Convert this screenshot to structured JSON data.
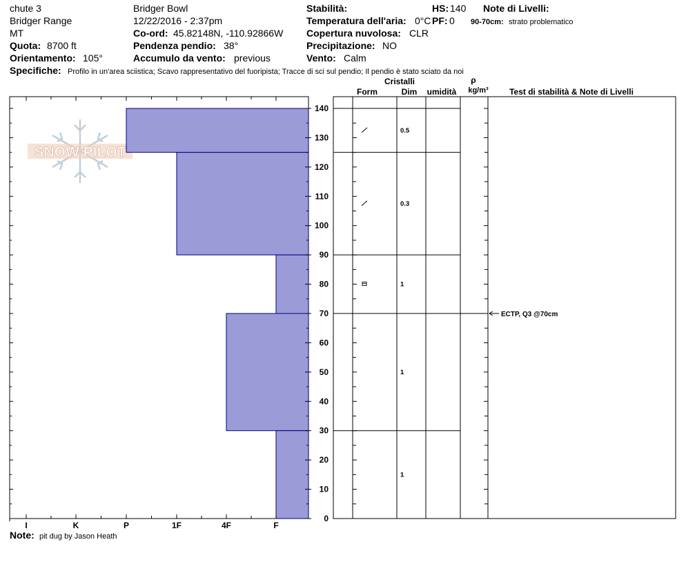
{
  "header": {
    "location_name": "chute 3",
    "range": "Bridger Range",
    "state": "MT",
    "elevation_label": "Quota:",
    "elevation_value": "8700 ft",
    "aspect_label": "Orientamento:",
    "aspect_value": "105°",
    "area": "Bridger Bowl",
    "datetime": "12/22/2016 - 2:37pm",
    "coord_label": "Co-ord:",
    "coord_value": "45.82148N, -110.92866W",
    "slope_label": "Pendenza pendio:",
    "slope_value": "38°",
    "wind_load_label": "Accumulo da vento:",
    "wind_load_value": "previous",
    "stability_label": "Stabilità:",
    "stability_value": "",
    "air_temp_label": "Temperatura dell'aria:",
    "air_temp_value": "0°C",
    "sky_label": "Copertura nuvolosa:",
    "sky_value": "CLR",
    "precip_label": "Precipitazione:",
    "precip_value": "NO",
    "wind_label": "Vento:",
    "wind_value": "Calm",
    "hs_label": "HS:",
    "hs_value": "140",
    "pf_label": "PF:",
    "pf_value": "0",
    "layer_notes_label": "Note di Livelli:",
    "layer_note_range": "90-70cm:",
    "layer_note_text": "strato problematico",
    "specifics_label": "Specifiche:",
    "specifics_text": "Profilo in un'area sciistica; Scavo rappresentativo del fuoripista; Tracce di sci sul pendio; Il pendio è stato sciato da noi"
  },
  "footer": {
    "note_label": "Note:",
    "note_text": "pit dug by Jason Heath"
  },
  "logo": {
    "text": "SNOW PILOT"
  },
  "columns": {
    "crystals": "Cristalli",
    "form": "Form",
    "dim": "Dim",
    "moisture": "umidità",
    "density_symbol": "ρ",
    "density_unit": "kg/m³",
    "tests": "Test di stabilità & Note di Livelli"
  },
  "chart_data": {
    "type": "bar",
    "orientation": "horizontal-steps",
    "ylim": [
      0,
      140
    ],
    "yticks": [
      0,
      10,
      20,
      30,
      40,
      50,
      60,
      70,
      80,
      90,
      100,
      110,
      120,
      130,
      140
    ],
    "hardness_scale": [
      "I",
      "K",
      "P",
      "1F",
      "4F",
      "F"
    ],
    "layers": [
      {
        "top": 140,
        "bottom": 125,
        "hardness": "P",
        "form": "decomposing",
        "dim": "0.5"
      },
      {
        "top": 125,
        "bottom": 90,
        "hardness": "1F",
        "form": "decomposing",
        "dim": "0.3"
      },
      {
        "top": 90,
        "bottom": 70,
        "hardness": "F",
        "form": "faceted",
        "dim": "1"
      },
      {
        "top": 70,
        "bottom": 30,
        "hardness": "4F",
        "form": "",
        "dim": "1"
      },
      {
        "top": 30,
        "bottom": 0,
        "hardness": "F",
        "form": "",
        "dim": "1"
      }
    ],
    "tests": [
      {
        "depth": 70,
        "label": "ECTP, Q3 @70cm"
      }
    ],
    "fill_color": "#9b9bd7",
    "line_color": "#000080"
  }
}
